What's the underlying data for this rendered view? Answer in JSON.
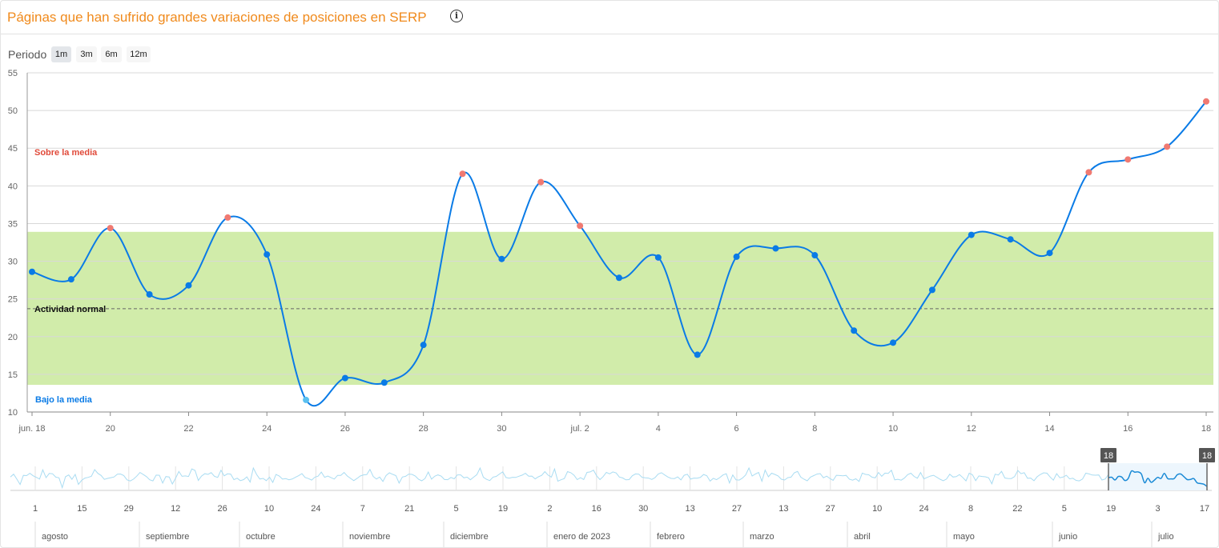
{
  "header": {
    "title": "Páginas que han sufrido grandes variaciones de posiciones en SERP",
    "info_icon": "info-circle-icon"
  },
  "period": {
    "label": "Periodo",
    "options": [
      "1m",
      "3m",
      "6m",
      "12m"
    ],
    "selected": "1m"
  },
  "colors": {
    "title": "#f08a1c",
    "line": "#0a7be6",
    "point_normal": "#0a7be6",
    "point_above": "#f07a72",
    "point_below": "#5bc0f0",
    "band": "#d1ecaa",
    "label_above": "#e04a3a",
    "label_below": "#0a7be6"
  },
  "chart_data": {
    "type": "line",
    "x_tick_labels": [
      "jun. 18",
      "20",
      "22",
      "24",
      "26",
      "28",
      "30",
      "jul. 2",
      "4",
      "6",
      "8",
      "10",
      "12",
      "14",
      "16",
      "18"
    ],
    "x": [
      "jun. 18",
      "jun. 19",
      "jun. 20",
      "jun. 21",
      "jun. 22",
      "jun. 23",
      "jun. 24",
      "jun. 25",
      "jun. 26",
      "jun. 27",
      "jun. 28",
      "jun. 29",
      "jun. 30",
      "jul. 1",
      "jul. 2",
      "jul. 3",
      "jul. 4",
      "jul. 5",
      "jul. 6",
      "jul. 7",
      "jul. 8",
      "jul. 9",
      "jul. 10",
      "jul. 11",
      "jul. 12",
      "jul. 13",
      "jul. 14",
      "jul. 15",
      "jul. 16",
      "jul. 17",
      "jul. 18"
    ],
    "values": [
      28.6,
      27.6,
      34.4,
      25.6,
      26.8,
      35.8,
      30.9,
      11.6,
      14.5,
      13.9,
      18.9,
      41.6,
      30.3,
      40.5,
      34.7,
      27.8,
      30.5,
      17.6,
      30.6,
      31.7,
      30.8,
      20.8,
      19.2,
      26.2,
      33.5,
      32.9,
      31.1,
      41.8,
      43.5,
      45.2,
      51.2
    ],
    "ylim": [
      10,
      55
    ],
    "y_ticks": [
      10,
      15,
      20,
      25,
      30,
      35,
      40,
      45,
      50,
      55
    ],
    "band": {
      "low": 13.6,
      "high": 33.9,
      "mean": 23.7
    },
    "annotations": {
      "above": "Sobre la media",
      "normal": "Actividad normal",
      "below": "Bajo la media"
    },
    "grid": true
  },
  "navigator": {
    "day_labels": [
      "1",
      "15",
      "29",
      "12",
      "26",
      "10",
      "24",
      "7",
      "21",
      "5",
      "19",
      "2",
      "16",
      "30",
      "13",
      "27",
      "13",
      "27",
      "10",
      "24",
      "8",
      "22",
      "5",
      "19",
      "3",
      "17"
    ],
    "month_labels": [
      "agosto",
      "septiembre",
      "octubre",
      "noviembre",
      "diciembre",
      "enero de 2023",
      "febrero",
      "marzo",
      "abril",
      "mayo",
      "junio",
      "julio"
    ],
    "handle_left": "18",
    "handle_right": "18"
  }
}
